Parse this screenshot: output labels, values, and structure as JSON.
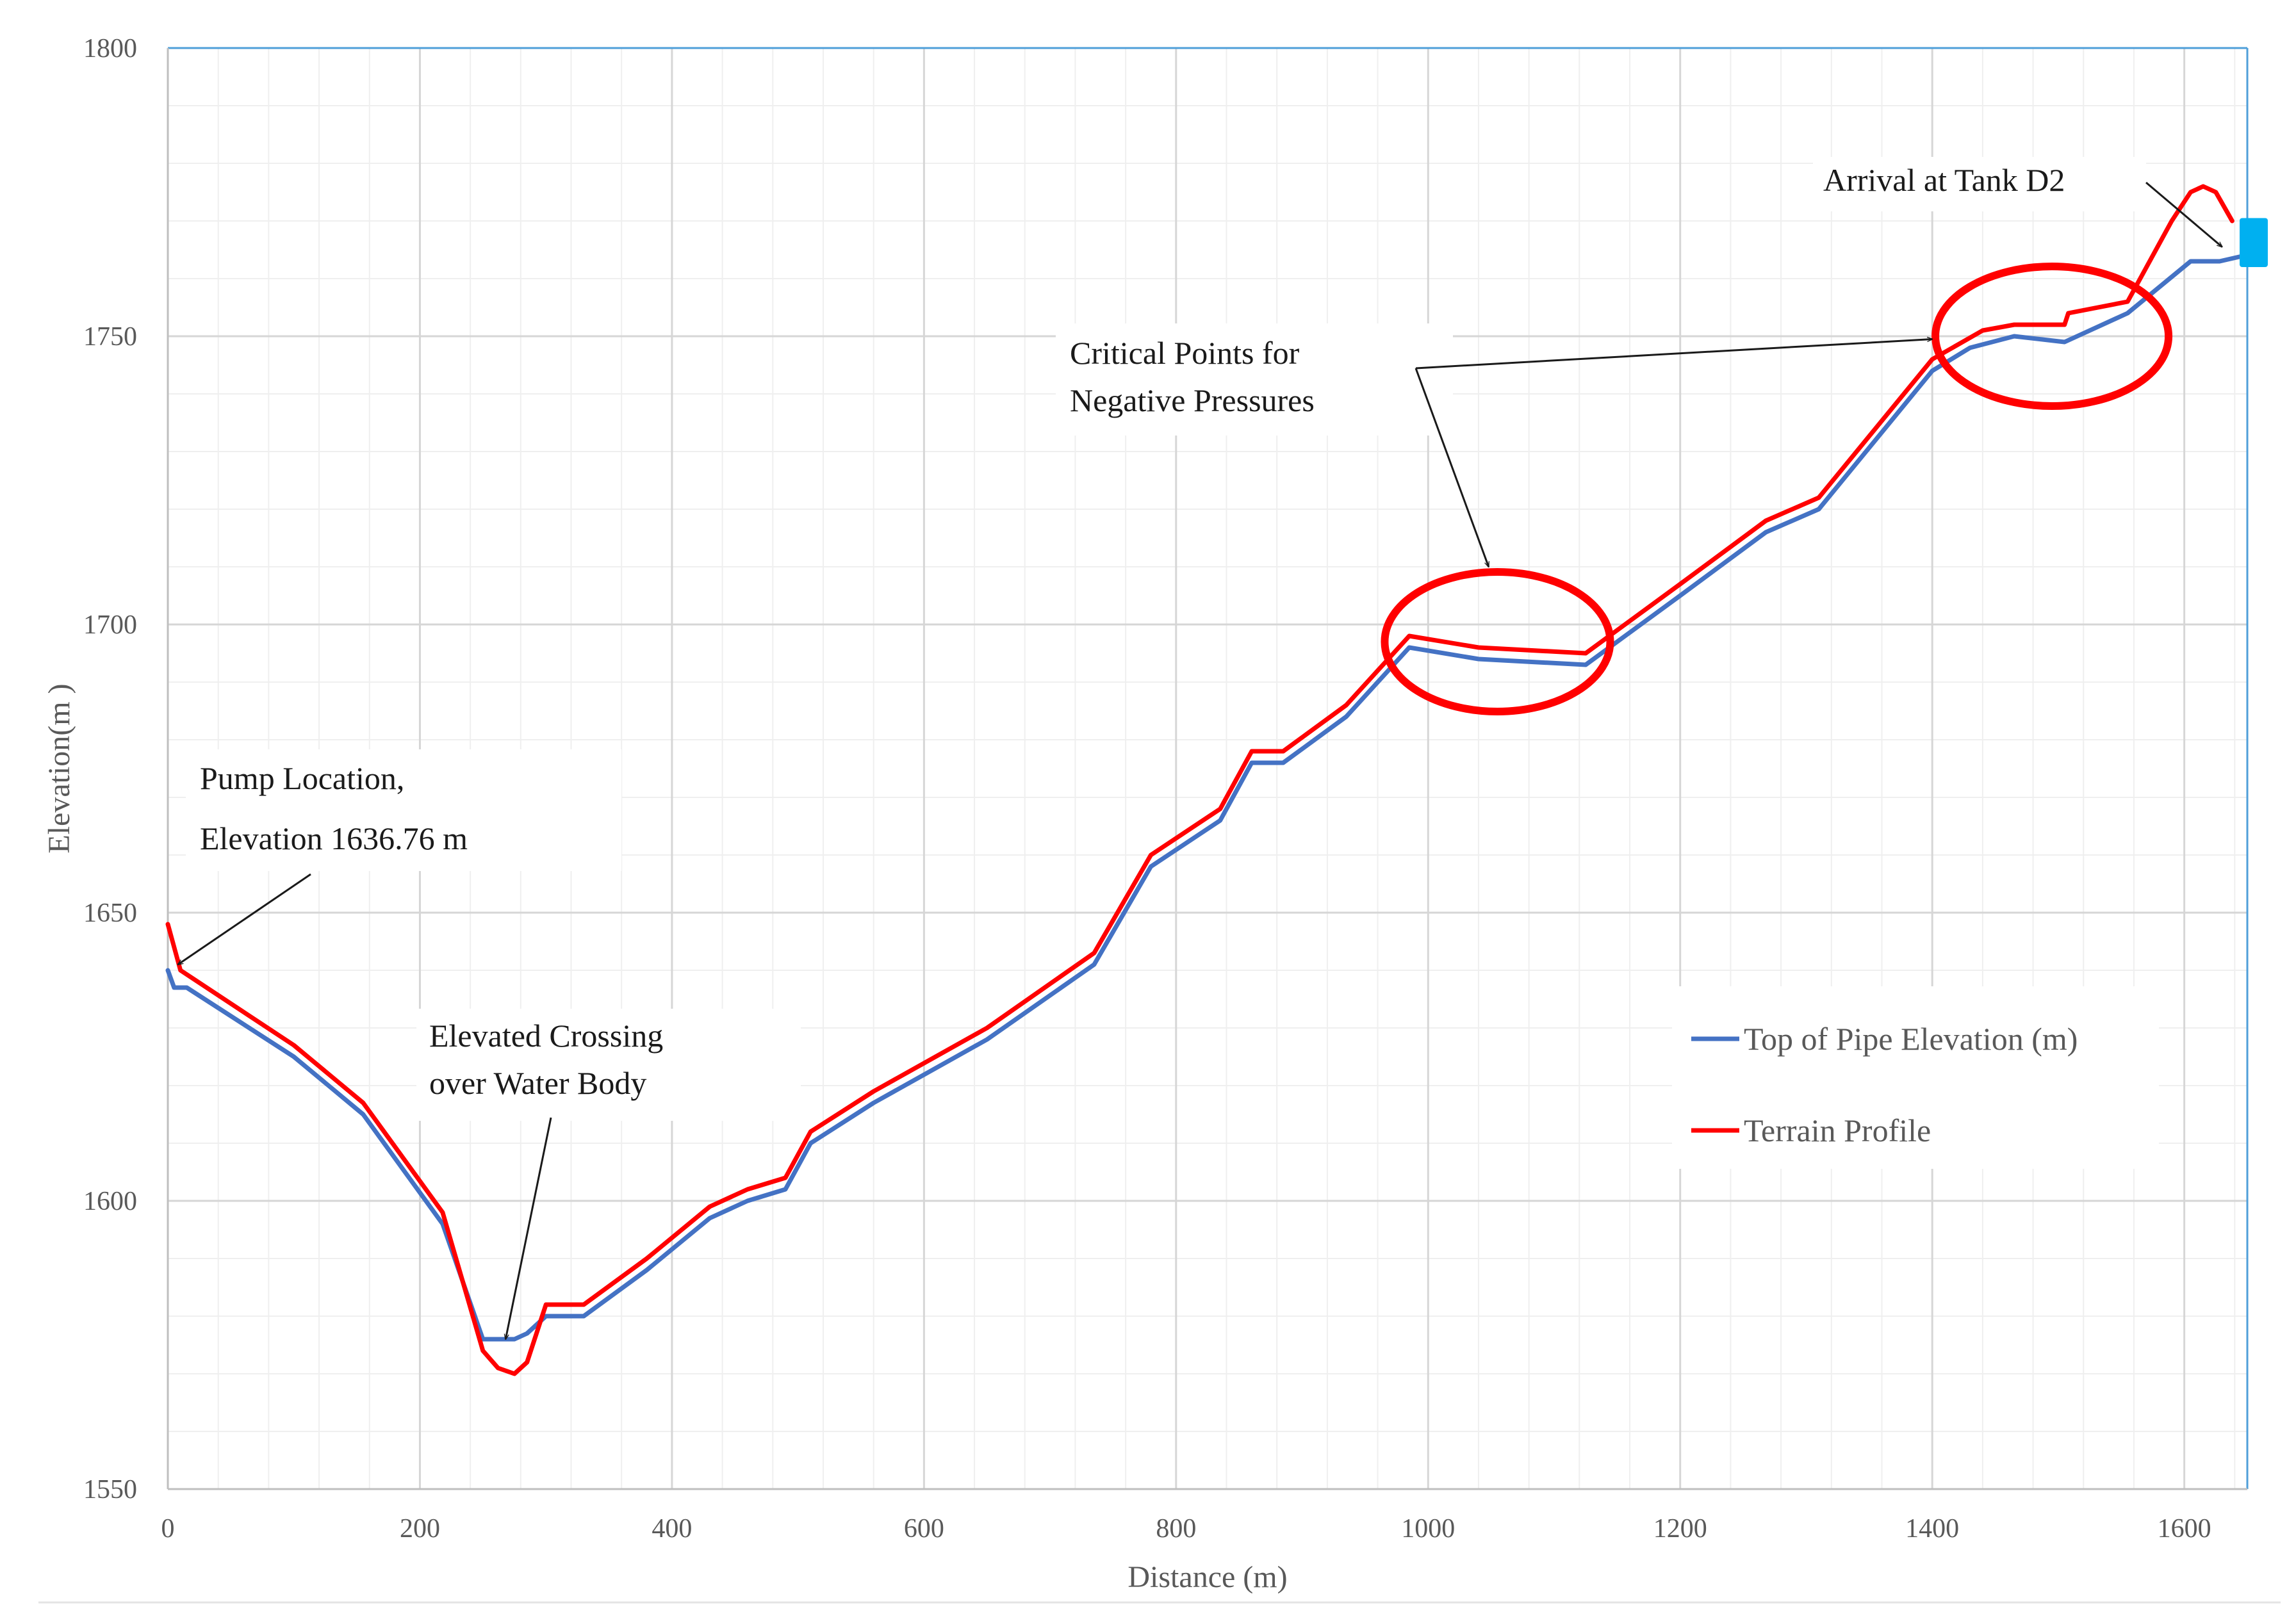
{
  "chart_data": {
    "type": "line",
    "title": "",
    "xlabel": "Distance (m)",
    "ylabel": "Elevation(m )",
    "xlim": [
      0,
      1650
    ],
    "ylim": [
      1550,
      1800
    ],
    "x_ticks": [
      0,
      200,
      400,
      600,
      800,
      1000,
      1200,
      1400,
      1600
    ],
    "y_ticks": [
      1550,
      1600,
      1650,
      1700,
      1750,
      1800
    ],
    "grid": true,
    "legend_position": "right",
    "series": [
      {
        "name": "Top of Pipe Elevation (m)",
        "color": "#4472C4",
        "x": [
          0,
          5,
          15,
          100,
          155,
          218,
          250,
          262,
          275,
          285,
          300,
          330,
          380,
          430,
          460,
          490,
          510,
          560,
          650,
          735,
          780,
          835,
          860,
          885,
          935,
          985,
          1040,
          1125,
          1200,
          1268,
          1310,
          1400,
          1430,
          1465,
          1505,
          1555,
          1605,
          1615,
          1628,
          1648
        ],
        "y": [
          1640,
          1637,
          1637,
          1625,
          1615,
          1596,
          1576,
          1576,
          1576,
          1577,
          1580,
          1580,
          1588,
          1597,
          1600,
          1602,
          1610,
          1617,
          1628,
          1641,
          1658,
          1666,
          1676,
          1676,
          1684,
          1696,
          1694,
          1693,
          1705,
          1716,
          1720,
          1744,
          1748,
          1750,
          1749,
          1754,
          1763,
          1763,
          1763,
          1764
        ]
      },
      {
        "name": "Terrain Profile",
        "color": "#FF0000",
        "x": [
          0,
          10,
          100,
          155,
          218,
          250,
          262,
          275,
          285,
          300,
          330,
          380,
          430,
          460,
          490,
          510,
          560,
          650,
          735,
          780,
          835,
          860,
          885,
          935,
          985,
          1040,
          1125,
          1200,
          1268,
          1310,
          1400,
          1440,
          1465,
          1505,
          1508,
          1555,
          1590,
          1605,
          1615,
          1625,
          1638
        ],
        "y": [
          1648,
          1640,
          1627,
          1617,
          1598,
          1574,
          1571,
          1570,
          1572,
          1582,
          1582,
          1590,
          1599,
          1602,
          1604,
          1612,
          1619,
          1630,
          1643,
          1660,
          1668,
          1678,
          1678,
          1686,
          1698,
          1696,
          1695,
          1707,
          1718,
          1722,
          1746,
          1751,
          1752,
          1752,
          1754,
          1756,
          1770,
          1775,
          1776,
          1775,
          1770
        ]
      }
    ],
    "annotations": [
      {
        "lines": [
          "Pump Location,",
          "Elevation 1636.76 m"
        ]
      },
      {
        "lines": [
          "Elevated Crossing",
          "over Water Body"
        ]
      },
      {
        "lines": [
          "Critical Points for",
          "Negative Pressures"
        ]
      },
      {
        "lines": [
          "Arrival at Tank D2"
        ]
      }
    ],
    "highlights": [
      {
        "x": 1055,
        "y": 1697
      },
      {
        "x": 1495,
        "y": 1750
      }
    ],
    "tank_marker_color": "#00B0F0"
  }
}
